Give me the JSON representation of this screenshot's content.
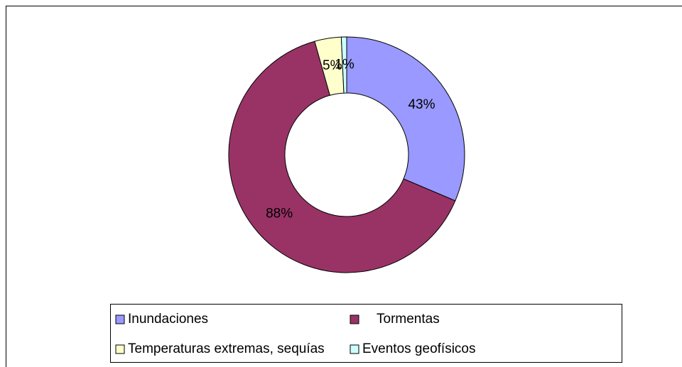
{
  "chart_data": {
    "type": "donut",
    "categories": [
      "Inundaciones",
      "Tormentas",
      "Temperaturas extremas, sequías",
      "Eventos geofísicos"
    ],
    "values": [
      43,
      88,
      5,
      1
    ],
    "value_labels": [
      "43%",
      "88%",
      "5%",
      "1%"
    ],
    "colors": [
      "#9999ff",
      "#993366",
      "#ffffcc",
      "#ccffff"
    ],
    "legend": "bottom"
  }
}
